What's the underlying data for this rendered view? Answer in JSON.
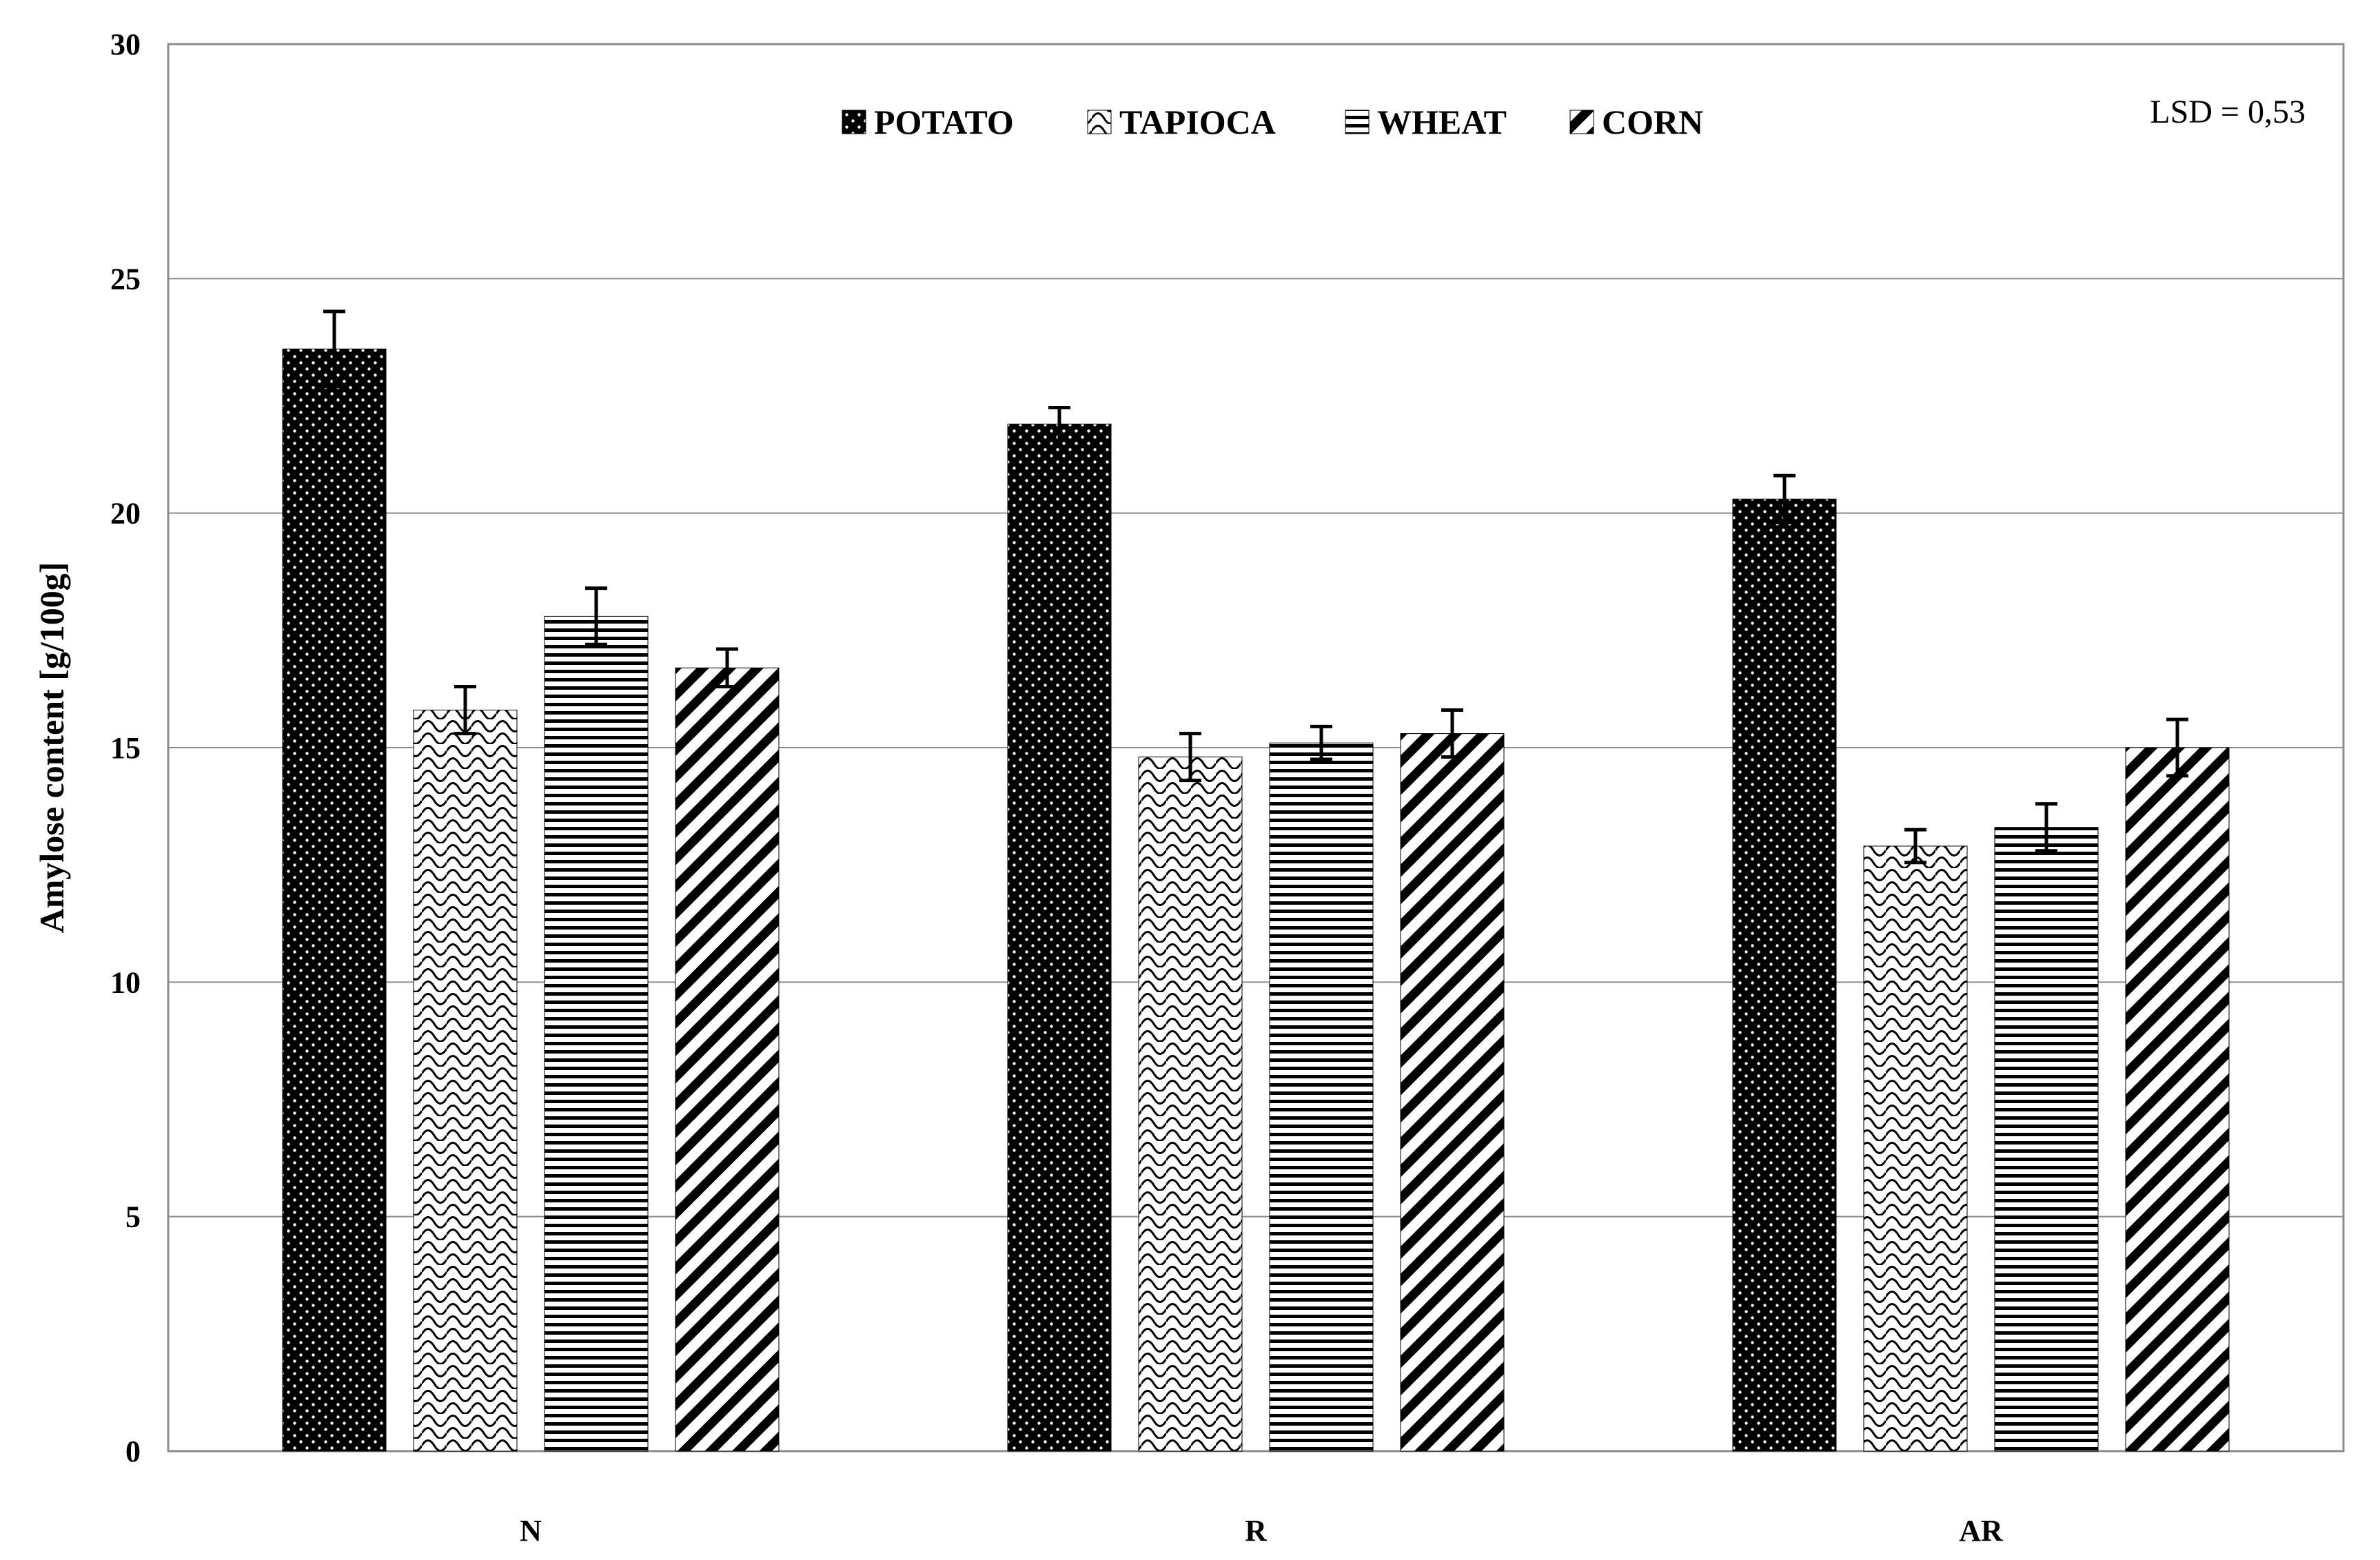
{
  "chart_data": {
    "type": "bar",
    "title": "",
    "xlabel": "",
    "ylabel": "Amylose content [g/100g]",
    "ylim": [
      0,
      30
    ],
    "yticks": [
      0,
      5,
      10,
      15,
      20,
      25,
      30
    ],
    "grid": true,
    "legend_position": "top-center",
    "annotation": "LSD = 0,53",
    "categories": [
      "N",
      "R",
      "AR"
    ],
    "series": [
      {
        "name": "POTATO",
        "pattern": "dots",
        "color": "#000000",
        "values": [
          23.5,
          21.9,
          20.3
        ],
        "errors": [
          0.8,
          0.35,
          0.5
        ]
      },
      {
        "name": "TAPIOCA",
        "pattern": "waves",
        "color": "#000000",
        "values": [
          15.8,
          14.8,
          12.9
        ],
        "errors": [
          0.5,
          0.5,
          0.35
        ]
      },
      {
        "name": "WHEAT",
        "pattern": "horizontal",
        "color": "#000000",
        "values": [
          17.8,
          15.1,
          13.3
        ],
        "errors": [
          0.6,
          0.35,
          0.5
        ]
      },
      {
        "name": "CORN",
        "pattern": "diagonal",
        "color": "#000000",
        "values": [
          16.7,
          15.3,
          15.0
        ],
        "errors": [
          0.4,
          0.5,
          0.6
        ]
      }
    ]
  }
}
